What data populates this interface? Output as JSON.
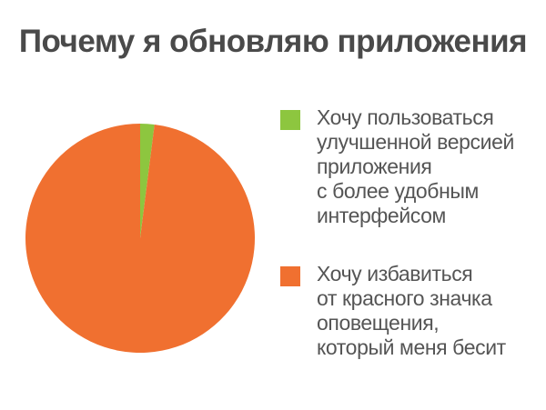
{
  "chart_data": {
    "type": "pie",
    "title": "Почему я обновляю приложения",
    "slices": [
      {
        "label_lines": [
          "Хочу пользоваться",
          "улучшенной версией",
          "приложения",
          "с более удобным",
          "интерфейсом"
        ],
        "value": 2,
        "color": "#8dc63f"
      },
      {
        "label_lines": [
          "Хочу избавиться",
          "от красного значка",
          "оповещения,",
          "который меня бесит"
        ],
        "value": 98,
        "color": "#f07030"
      }
    ],
    "legend": "right"
  }
}
